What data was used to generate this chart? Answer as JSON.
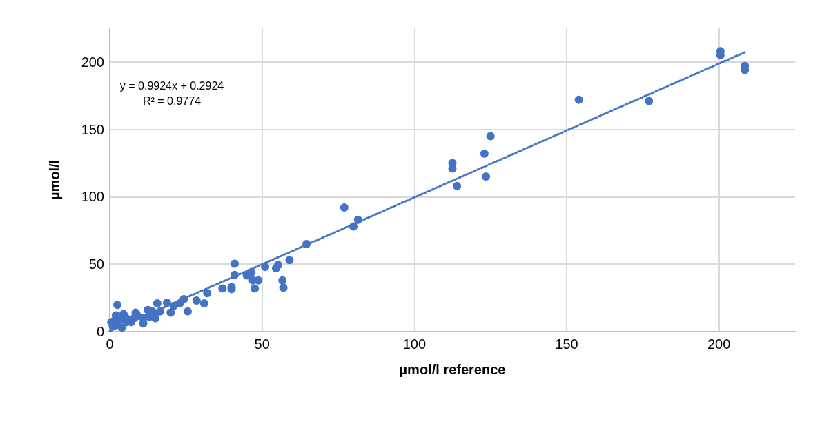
{
  "chart_data": {
    "type": "scatter",
    "xlabel": "µmol/l reference",
    "ylabel": "µmol/l",
    "xlim": [
      0,
      225
    ],
    "xticks": [
      0,
      50,
      100,
      150,
      200
    ],
    "ylim": [
      0,
      225
    ],
    "yticks": [
      0,
      50,
      100,
      150,
      200
    ],
    "grid": true,
    "marker": "circle",
    "annotations": [
      "y = 0.9924x + 0.2924",
      "R² = 0.9774"
    ],
    "series": [
      {
        "color": "#4472c4",
        "x": [
          0.5,
          1,
          1.5,
          2,
          2.5,
          2.5,
          3.5,
          4,
          4.5,
          5,
          5.5,
          6,
          7,
          8,
          8.5,
          9,
          11,
          11,
          12.5,
          13,
          14,
          15,
          15,
          15.6,
          16.5,
          18.8,
          20,
          21,
          23,
          24.3,
          25.6,
          28.5,
          31,
          32,
          37,
          40,
          40,
          41,
          41,
          45,
          46.5,
          47.6,
          47,
          48.8,
          51,
          54.6,
          55.3,
          56.7,
          57,
          59,
          64.6,
          77,
          80,
          81.5,
          112.5,
          112.5,
          114,
          123,
          123.5,
          125,
          154,
          177,
          200.5,
          200.5,
          208.5,
          208.5
        ],
        "values": [
          7,
          4,
          8,
          12,
          19.8,
          5,
          9,
          3,
          13,
          11,
          7,
          9,
          7,
          10,
          14,
          12,
          6,
          10,
          16,
          11,
          15,
          10,
          13,
          21,
          15,
          21.4,
          14,
          19,
          21,
          24,
          15,
          23,
          21,
          28.5,
          32,
          31.5,
          33,
          50.4,
          42,
          41.7,
          44,
          32,
          38,
          38,
          48,
          47,
          49.4,
          38,
          32.6,
          53,
          65,
          92,
          78,
          83,
          125,
          121,
          108,
          132,
          115,
          145,
          172,
          171,
          208,
          205,
          197,
          194
        ]
      },
      {
        "type": "line",
        "color": "#4472c4",
        "line_style": "dotted",
        "marker": "none",
        "x": [
          0,
          209
        ],
        "values": [
          0.3,
          207.7
        ]
      }
    ]
  }
}
